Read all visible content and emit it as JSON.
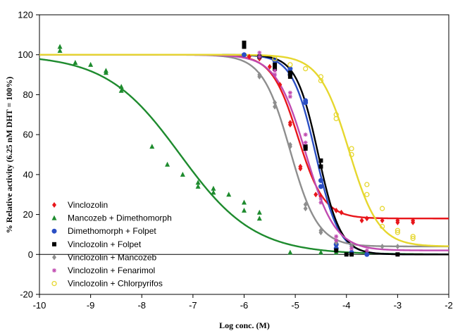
{
  "chart_data": {
    "type": "scatter",
    "xlabel": "Log conc. (M)",
    "ylabel": "% Relative activity (6.25 nM DHT = 100%)",
    "xlim": [
      -10,
      -2
    ],
    "ylim": [
      -20,
      120
    ],
    "xticks": [
      -10,
      -9,
      -8,
      -7,
      -6,
      -5,
      -4,
      -3,
      -2
    ],
    "yticks": [
      -20,
      0,
      20,
      40,
      60,
      80,
      100,
      120
    ],
    "grid": false,
    "legend_position": "bottom-left",
    "series": [
      {
        "name": "Vinclozolin",
        "color": "#e8161b",
        "marker": "diamond",
        "fit": {
          "top": 100,
          "bottom": 18,
          "logec50": -4.95,
          "hill": 1.7
        },
        "points": [
          [
            -5.9,
            99
          ],
          [
            -5.7,
            98
          ],
          [
            -5.5,
            94
          ],
          [
            -5.3,
            85
          ],
          [
            -5.1,
            66
          ],
          [
            -5.1,
            65
          ],
          [
            -4.9,
            44
          ],
          [
            -4.9,
            43
          ],
          [
            -4.6,
            30
          ],
          [
            -4.5,
            29
          ],
          [
            -4.2,
            22
          ],
          [
            -4.1,
            21
          ],
          [
            -3.7,
            17
          ],
          [
            -3.6,
            18
          ],
          [
            -3.3,
            17
          ],
          [
            -3.0,
            16
          ],
          [
            -3.0,
            17
          ],
          [
            -2.7,
            17
          ],
          [
            -2.7,
            16
          ]
        ]
      },
      {
        "name": "Mancozeb + Dimethomorph",
        "color": "#1e8b2e",
        "marker": "triangle",
        "fit": {
          "top": 100,
          "bottom": 0,
          "logec50": -7.25,
          "hill": 0.6
        },
        "points": [
          [
            -9.6,
            104
          ],
          [
            -9.6,
            102
          ],
          [
            -9.3,
            96
          ],
          [
            -9.0,
            95
          ],
          [
            -8.7,
            92
          ],
          [
            -8.7,
            91
          ],
          [
            -8.4,
            84
          ],
          [
            -8.4,
            82
          ],
          [
            -7.8,
            54
          ],
          [
            -7.5,
            45
          ],
          [
            -7.2,
            40
          ],
          [
            -6.9,
            36
          ],
          [
            -6.9,
            34
          ],
          [
            -6.6,
            33
          ],
          [
            -6.6,
            31
          ],
          [
            -6.3,
            30
          ],
          [
            -6.0,
            26
          ],
          [
            -6.0,
            22
          ],
          [
            -5.7,
            21
          ],
          [
            -5.7,
            18
          ],
          [
            -5.1,
            1
          ],
          [
            -4.5,
            1
          ],
          [
            -4.2,
            1
          ],
          [
            -3.9,
            1
          ]
        ]
      },
      {
        "name": "Dimethomorph + Folpet",
        "color": "#2b4fc4",
        "marker": "circle",
        "fit": {
          "top": 100,
          "bottom": 0,
          "logec50": -4.6,
          "hill": 1.9
        },
        "points": [
          [
            -6.0,
            100
          ],
          [
            -5.7,
            99
          ],
          [
            -5.4,
            97
          ],
          [
            -5.1,
            93
          ],
          [
            -5.1,
            90
          ],
          [
            -4.8,
            77
          ],
          [
            -4.8,
            76
          ],
          [
            -4.5,
            37
          ],
          [
            -4.5,
            34
          ],
          [
            -4.2,
            5
          ],
          [
            -4.2,
            3
          ],
          [
            -3.9,
            1
          ],
          [
            -3.6,
            0
          ]
        ]
      },
      {
        "name": "Vinclozolin + Folpet",
        "color": "#000000",
        "marker": "square",
        "fit": {
          "top": 100,
          "bottom": 0,
          "logec50": -4.55,
          "hill": 2.0
        },
        "points": [
          [
            -6.0,
            106
          ],
          [
            -6.0,
            104
          ],
          [
            -5.7,
            99
          ],
          [
            -5.4,
            95
          ],
          [
            -5.4,
            93
          ],
          [
            -5.1,
            91
          ],
          [
            -5.1,
            89
          ],
          [
            -4.8,
            54
          ],
          [
            -4.8,
            53
          ],
          [
            -4.5,
            47
          ],
          [
            -4.5,
            44
          ],
          [
            -4.2,
            2
          ],
          [
            -4.0,
            0
          ],
          [
            -3.9,
            0
          ],
          [
            -3.0,
            0
          ]
        ]
      },
      {
        "name": "Vinclozolin + Mancozeb",
        "color": "#8e8e8e",
        "marker": "diamond",
        "fit": {
          "top": 100,
          "bottom": 4,
          "logec50": -5.1,
          "hill": 1.6
        },
        "points": [
          [
            -5.7,
            90
          ],
          [
            -5.7,
            89
          ],
          [
            -5.4,
            76
          ],
          [
            -5.4,
            74
          ],
          [
            -5.1,
            55
          ],
          [
            -5.1,
            54
          ],
          [
            -4.8,
            25
          ],
          [
            -4.8,
            23
          ],
          [
            -4.5,
            12
          ],
          [
            -4.5,
            11
          ],
          [
            -4.2,
            6
          ],
          [
            -3.9,
            4
          ],
          [
            -3.3,
            4
          ],
          [
            -3.0,
            4
          ]
        ]
      },
      {
        "name": "Vinclozolin + Fenarimol",
        "color": "#c04ab0",
        "marker": "asterisk",
        "fit": {
          "top": 100,
          "bottom": 2,
          "logec50": -4.8,
          "hill": 1.5
        },
        "points": [
          [
            -5.7,
            101
          ],
          [
            -5.7,
            99
          ],
          [
            -5.4,
            92
          ],
          [
            -5.4,
            90
          ],
          [
            -5.1,
            81
          ],
          [
            -5.1,
            79
          ],
          [
            -4.8,
            60
          ],
          [
            -4.8,
            56
          ],
          [
            -4.5,
            28
          ],
          [
            -4.5,
            26
          ],
          [
            -4.2,
            9
          ],
          [
            -4.2,
            7
          ],
          [
            -3.9,
            3
          ],
          [
            -3.6,
            2
          ]
        ]
      },
      {
        "name": "Vinclozolin + Chlorpyrifos",
        "color": "#e6d72e",
        "marker": "open-circle",
        "fit": {
          "top": 100,
          "bottom": 4,
          "logec50": -3.95,
          "hill": 1.5
        },
        "points": [
          [
            -5.4,
            98
          ],
          [
            -5.1,
            95
          ],
          [
            -4.8,
            93
          ],
          [
            -4.5,
            89
          ],
          [
            -4.5,
            87
          ],
          [
            -4.2,
            70
          ],
          [
            -4.2,
            68
          ],
          [
            -3.9,
            53
          ],
          [
            -3.9,
            50
          ],
          [
            -3.6,
            35
          ],
          [
            -3.6,
            30
          ],
          [
            -3.3,
            23
          ],
          [
            -3.3,
            14
          ],
          [
            -3.0,
            12
          ],
          [
            -3.0,
            11
          ],
          [
            -2.7,
            9
          ],
          [
            -2.7,
            8
          ]
        ]
      }
    ]
  }
}
